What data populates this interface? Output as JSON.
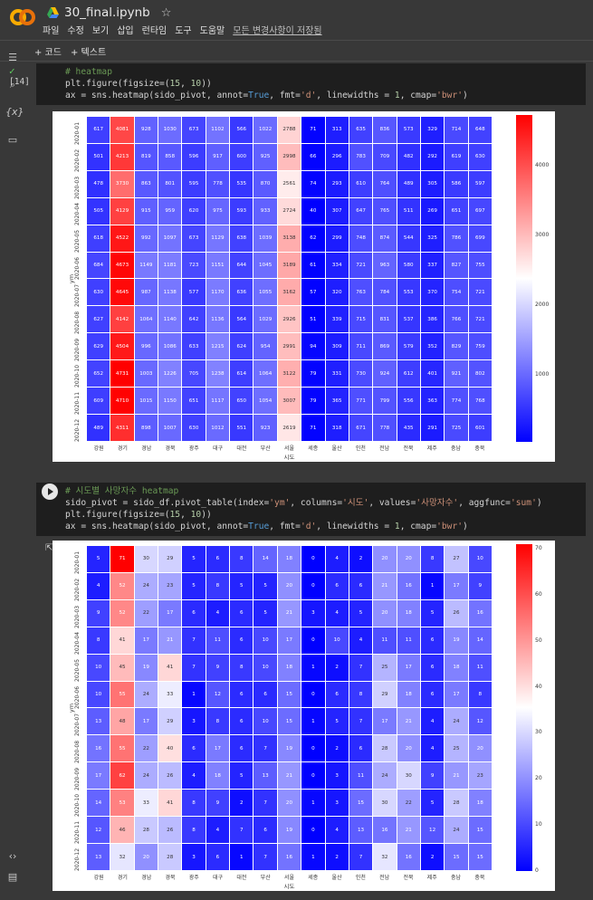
{
  "header": {
    "filename": "30_final.ipynb",
    "menu": [
      "파일",
      "수정",
      "보기",
      "삽입",
      "런타임",
      "도구",
      "도움말"
    ],
    "saved_status": "모든 변경사항이 저장됨"
  },
  "toolbar": {
    "add_code": "+ 코드",
    "add_text": "+ 텍스트"
  },
  "colors": {
    "page_bg": "#383838",
    "code_bg": "#1e1e1e"
  },
  "cells": [
    {
      "exec_count": "[14]",
      "lines": [
        "# heatmap",
        "plt.figure(figsize=(15, 10))",
        "ax = sns.heatmap(sido_pivot, annot=True, fmt='d', linewidths = 1, cmap='bwr')"
      ]
    },
    {
      "exec_count": "",
      "lines": [
        "# 시도별 사망자수 heatmap",
        "sido_pivot = sido_df.pivot_table(index='ym', columns='시도', values='사망자수', aggfunc='sum')",
        "plt.figure(figsize=(15, 10))",
        "ax = sns.heatmap(sido_pivot, annot=True, fmt='d', linewidths = 1, cmap='bwr')"
      ]
    }
  ],
  "chart_data": [
    {
      "type": "heatmap",
      "ylabel": "ym",
      "xlabel": "시도",
      "rows": [
        "2020-01",
        "2020-02",
        "2020-03",
        "2020-04",
        "2020-05",
        "2020-06",
        "2020-07",
        "2020-08",
        "2020-09",
        "2020-10",
        "2020-11",
        "2020-12"
      ],
      "columns": [
        "강원",
        "경기",
        "경남",
        "경북",
        "광주",
        "대구",
        "대전",
        "부산",
        "서울",
        "세종",
        "울산",
        "인천",
        "전남",
        "전북",
        "제주",
        "충남",
        "충북"
      ],
      "values": [
        [
          617,
          4081,
          928,
          1030,
          673,
          1102,
          566,
          1022,
          2788,
          71,
          313,
          635,
          836,
          573,
          329,
          714,
          648
        ],
        [
          501,
          4213,
          819,
          858,
          596,
          917,
          600,
          925,
          2998,
          66,
          296,
          783,
          709,
          482,
          292,
          619,
          630
        ],
        [
          478,
          3730,
          863,
          801,
          595,
          778,
          535,
          870,
          2561,
          74,
          293,
          610,
          764,
          489,
          305,
          586,
          597
        ],
        [
          505,
          4129,
          915,
          959,
          620,
          975,
          593,
          933,
          2724,
          40,
          307,
          647,
          765,
          511,
          269,
          651,
          697
        ],
        [
          618,
          4522,
          992,
          1097,
          673,
          1129,
          638,
          1039,
          3138,
          62,
          299,
          748,
          874,
          544,
          325,
          786,
          699
        ],
        [
          684,
          4673,
          1149,
          1181,
          723,
          1151,
          644,
          1045,
          3189,
          61,
          334,
          721,
          963,
          580,
          337,
          827,
          755
        ],
        [
          630,
          4645,
          987,
          1138,
          577,
          1170,
          636,
          1055,
          3162,
          57,
          320,
          763,
          784,
          553,
          370,
          754,
          721
        ],
        [
          627,
          4142,
          1064,
          1140,
          642,
          1136,
          564,
          1029,
          2926,
          51,
          339,
          715,
          831,
          537,
          386,
          766,
          721
        ],
        [
          629,
          4504,
          996,
          1086,
          633,
          1215,
          624,
          954,
          2991,
          94,
          309,
          711,
          869,
          579,
          352,
          829,
          759
        ],
        [
          652,
          4731,
          1003,
          1226,
          705,
          1238,
          614,
          1064,
          3122,
          79,
          331,
          730,
          924,
          612,
          401,
          921,
          802
        ],
        [
          609,
          4710,
          1015,
          1150,
          651,
          1117,
          650,
          1054,
          3007,
          79,
          365,
          771,
          799,
          556,
          363,
          774,
          768
        ],
        [
          489,
          4311,
          898,
          1007,
          630,
          1012,
          551,
          923,
          2619,
          71,
          318,
          671,
          778,
          435,
          291,
          725,
          601
        ]
      ],
      "colorbar_ticks": [
        1000,
        2000,
        3000,
        4000
      ],
      "colorbar_range": [
        40,
        4731
      ],
      "cmap": "bwr"
    },
    {
      "type": "heatmap",
      "ylabel": "ym",
      "xlabel": "시도",
      "rows": [
        "2020-01",
        "2020-02",
        "2020-03",
        "2020-04",
        "2020-05",
        "2020-06",
        "2020-07",
        "2020-08",
        "2020-09",
        "2020-10",
        "2020-11",
        "2020-12"
      ],
      "columns": [
        "강원",
        "경기",
        "경남",
        "경북",
        "광주",
        "대구",
        "대전",
        "부산",
        "서울",
        "세종",
        "울산",
        "인천",
        "전남",
        "전북",
        "제주",
        "충남",
        "충북"
      ],
      "values": [
        [
          5,
          71,
          30,
          29,
          5,
          6,
          8,
          14,
          18,
          0,
          4,
          2,
          20,
          20,
          8,
          27,
          10
        ],
        [
          4,
          52,
          24,
          23,
          5,
          8,
          5,
          5,
          20,
          0,
          6,
          6,
          21,
          16,
          1,
          17,
          9
        ],
        [
          9,
          52,
          22,
          17,
          6,
          4,
          6,
          5,
          21,
          3,
          4,
          5,
          20,
          18,
          5,
          26,
          16
        ],
        [
          8,
          41,
          17,
          21,
          7,
          11,
          6,
          10,
          17,
          0,
          10,
          4,
          11,
          11,
          6,
          19,
          14
        ],
        [
          10,
          45,
          19,
          41,
          7,
          9,
          8,
          10,
          18,
          1,
          2,
          7,
          25,
          17,
          6,
          18,
          11
        ],
        [
          10,
          55,
          24,
          33,
          1,
          12,
          6,
          6,
          15,
          0,
          6,
          8,
          29,
          18,
          6,
          17,
          8
        ],
        [
          13,
          48,
          17,
          29,
          3,
          8,
          6,
          10,
          15,
          1,
          5,
          7,
          17,
          21,
          4,
          24,
          12
        ],
        [
          16,
          55,
          22,
          40,
          6,
          17,
          6,
          7,
          19,
          0,
          2,
          6,
          28,
          20,
          4,
          25,
          20
        ],
        [
          17,
          62,
          24,
          26,
          4,
          18,
          5,
          13,
          21,
          0,
          3,
          11,
          24,
          30,
          9,
          21,
          23
        ],
        [
          14,
          53,
          33,
          41,
          8,
          9,
          2,
          7,
          20,
          1,
          3,
          15,
          30,
          22,
          5,
          28,
          18
        ],
        [
          12,
          46,
          28,
          26,
          8,
          4,
          7,
          6,
          19,
          0,
          4,
          13,
          16,
          21,
          12,
          24,
          15
        ],
        [
          13,
          32,
          20,
          28,
          3,
          6,
          1,
          7,
          16,
          1,
          2,
          7,
          32,
          16,
          2,
          15,
          15
        ]
      ],
      "colorbar_ticks": [
        0,
        10,
        20,
        30,
        40,
        50,
        60,
        70
      ],
      "colorbar_range": [
        0,
        71
      ],
      "cmap": "bwr"
    }
  ]
}
